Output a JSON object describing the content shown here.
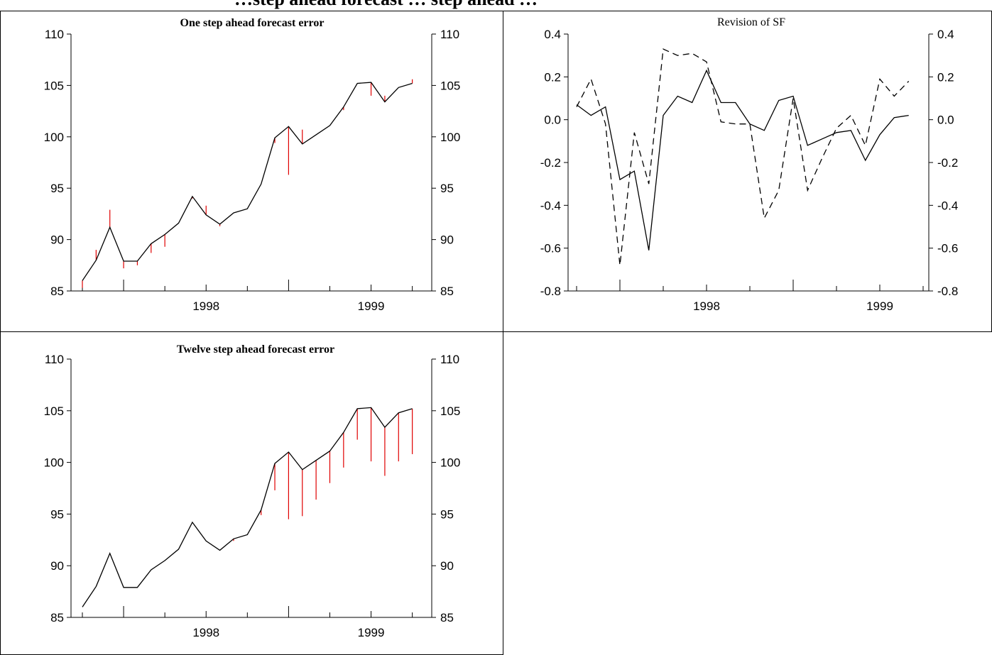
{
  "page": {
    "title": "…step ahead forecast … step ahead …"
  },
  "chart_data": [
    {
      "id": "one-step",
      "type": "line",
      "title": "One step ahead forecast error",
      "title_style": "bold",
      "x_type": "monthly",
      "x_start": "1997-04",
      "x_end": "1999-05",
      "x_ticklabels": [
        "1998",
        "1999"
      ],
      "ylim": [
        85,
        110
      ],
      "yticks": [
        85,
        90,
        95,
        100,
        105,
        110
      ],
      "right_axis": true,
      "series": [
        {
          "style": "solid-black",
          "values": [
            86.0,
            88.0,
            91.2,
            87.9,
            87.9,
            89.6,
            90.5,
            91.6,
            94.2,
            92.4,
            91.5,
            92.6,
            93.0,
            95.4,
            99.9,
            101.0,
            99.3,
            100.2,
            101.1,
            102.9,
            105.2,
            105.3,
            103.4,
            104.8,
            105.2
          ]
        }
      ],
      "error_lines": {
        "color": "#e00000",
        "forecast_values": [
          85.3,
          89.0,
          92.9,
          87.2,
          87.5,
          88.7,
          89.3,
          91.6,
          94.0,
          93.3,
          91.3,
          92.6,
          93.0,
          95.4,
          99.4,
          96.3,
          100.7,
          100.2,
          101.1,
          102.6,
          105.2,
          104.0,
          104.0,
          104.8,
          105.6
        ]
      }
    },
    {
      "id": "revision",
      "type": "line",
      "title": "Revision of SF",
      "title_style": "normal",
      "x_type": "monthly",
      "x_start": "1997-04",
      "x_end": "1999-04",
      "x_ticklabels": [
        "1998",
        "1999"
      ],
      "ylim": [
        -0.8,
        0.4
      ],
      "yticks": [
        -0.8,
        -0.6,
        -0.4,
        -0.2,
        0.0,
        0.2,
        0.4
      ],
      "ytick_labels": [
        "-0.8",
        "-0.6",
        "-0.4",
        "-0.2",
        "0.0",
        "0.2",
        "0.4"
      ],
      "right_axis": true,
      "series": [
        {
          "style": "solid-black",
          "values": [
            0.07,
            0.02,
            0.06,
            -0.28,
            -0.24,
            -0.61,
            0.02,
            0.11,
            0.08,
            0.23,
            0.08,
            0.08,
            -0.02,
            -0.05,
            0.09,
            0.11,
            -0.12,
            -0.09,
            -0.06,
            -0.05,
            -0.19,
            -0.07,
            0.01,
            0.02
          ]
        },
        {
          "style": "dashed-black",
          "values": [
            0.06,
            0.19,
            -0.02,
            -0.68,
            -0.06,
            -0.3,
            0.33,
            0.3,
            0.31,
            0.27,
            -0.01,
            -0.02,
            -0.02,
            -0.46,
            -0.33,
            0.1,
            -0.33,
            -0.18,
            -0.04,
            0.02,
            -0.12,
            0.19,
            0.11,
            0.18
          ]
        }
      ]
    },
    {
      "id": "twelve-step",
      "type": "line",
      "title": "Twelve step ahead forecast error",
      "title_style": "bold",
      "x_type": "monthly",
      "x_start": "1997-04",
      "x_end": "1999-05",
      "x_ticklabels": [
        "1998",
        "1999"
      ],
      "ylim": [
        85,
        110
      ],
      "yticks": [
        85,
        90,
        95,
        100,
        105,
        110
      ],
      "right_axis": true,
      "series": [
        {
          "style": "solid-black",
          "values": [
            86.0,
            88.0,
            91.2,
            87.9,
            87.9,
            89.6,
            90.5,
            91.6,
            94.2,
            92.4,
            91.5,
            92.6,
            93.0,
            95.4,
            99.9,
            101.0,
            99.3,
            100.2,
            101.1,
            102.9,
            105.2,
            105.3,
            103.4,
            104.8,
            105.2
          ]
        }
      ],
      "error_lines": {
        "color": "#e00000",
        "forecast_values": [
          86.0,
          88.0,
          91.2,
          87.9,
          87.9,
          89.6,
          90.5,
          91.6,
          94.2,
          92.4,
          91.5,
          92.4,
          93.0,
          94.9,
          97.3,
          94.5,
          94.8,
          96.4,
          98.0,
          99.5,
          102.2,
          100.1,
          98.7,
          100.1,
          100.8
        ]
      }
    }
  ]
}
